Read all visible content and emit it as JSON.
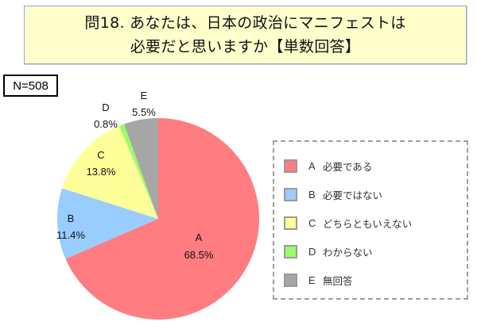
{
  "title": {
    "line1": "問18. あなたは、日本の政治にマニフェストは",
    "line2": "必要だと思いますか【単数回答】"
  },
  "sample": {
    "label": "N=508"
  },
  "colors": {
    "A": "#ff7c80",
    "B": "#99ccff",
    "C": "#ffff99",
    "D": "#99ff66",
    "E": "#a6a6a6",
    "title_bg": "#ffffcc",
    "title_border": "#8eaacc"
  },
  "legend": {
    "items": [
      {
        "key": "A",
        "letter": "A",
        "text": "必要である"
      },
      {
        "key": "B",
        "letter": "B",
        "text": "必要ではない"
      },
      {
        "key": "C",
        "letter": "C",
        "text": "どちらともいえない"
      },
      {
        "key": "D",
        "letter": "D",
        "text": "わからない"
      },
      {
        "key": "E",
        "letter": "E",
        "text": "無回答"
      }
    ]
  },
  "slices": {
    "A": {
      "letter": "A",
      "pct": "68.5%"
    },
    "B": {
      "letter": "B",
      "pct": "11.4%"
    },
    "C": {
      "letter": "C",
      "pct": "13.8%"
    },
    "D": {
      "letter": "D",
      "pct": "0.8%"
    },
    "E": {
      "letter": "E",
      "pct": "5.5%"
    }
  },
  "chart_data": {
    "type": "pie",
    "title": "問18. あなたは、日本の政治にマニフェストは必要だと思いますか【単数回答】",
    "sample_size": "N=508",
    "categories": [
      "A 必要である",
      "B 必要ではない",
      "C どちらともいえない",
      "D わからない",
      "E 無回答"
    ],
    "labels": [
      "A",
      "B",
      "C",
      "D",
      "E"
    ],
    "values": [
      68.5,
      11.4,
      13.8,
      0.8,
      5.5
    ],
    "unit": "%",
    "colors": [
      "#ff7c80",
      "#99ccff",
      "#ffff99",
      "#99ff66",
      "#a6a6a6"
    ],
    "start_angle": "12 o'clock",
    "direction": "clockwise",
    "legend_position": "right"
  }
}
